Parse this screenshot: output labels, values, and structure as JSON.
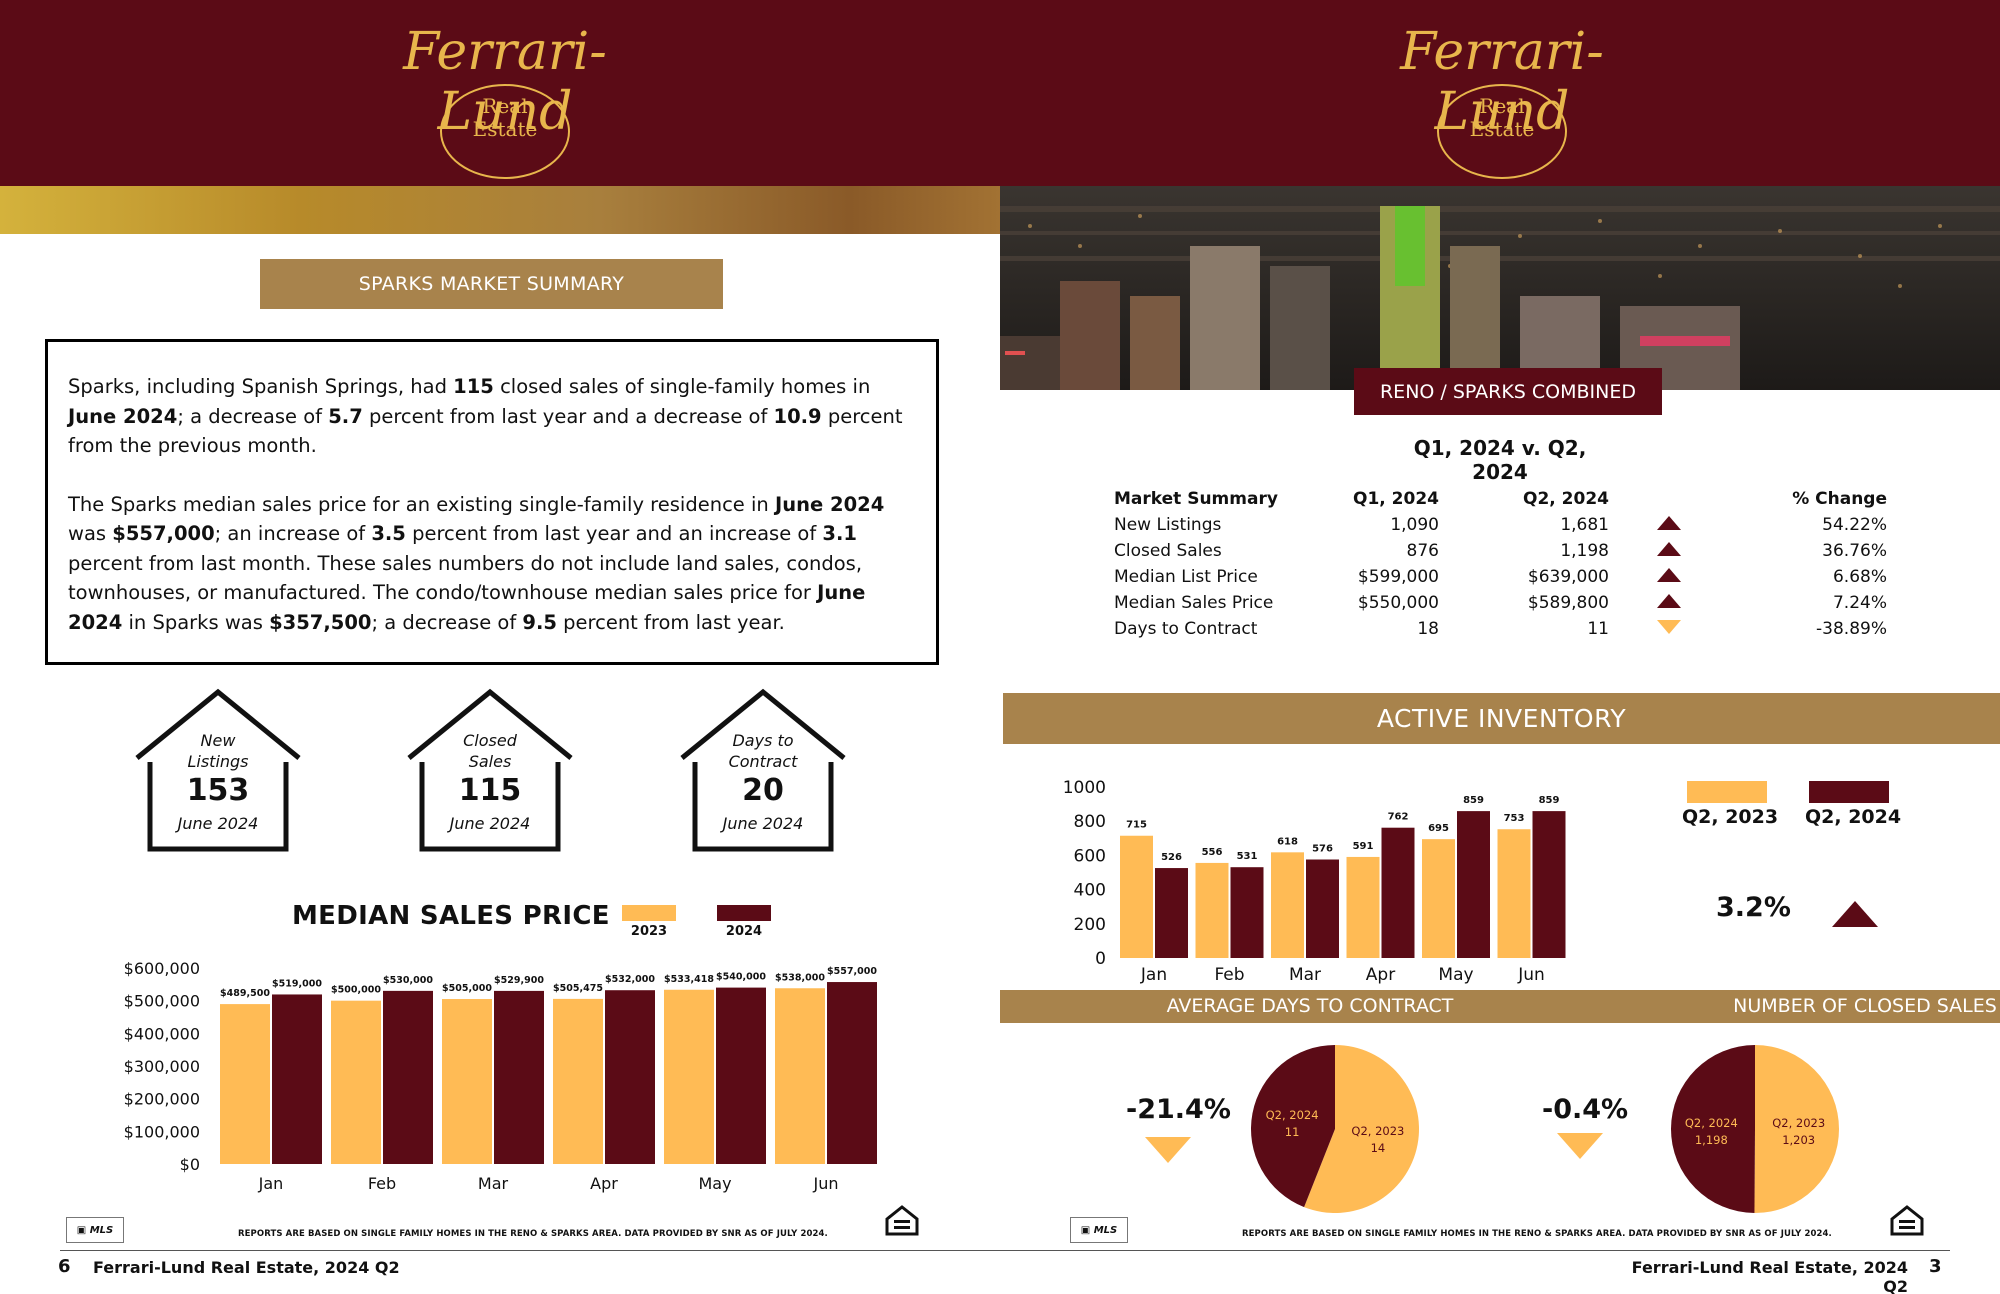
{
  "brand": {
    "name": "Ferrari-Lund",
    "sub1": "Real",
    "sub2": "Estate"
  },
  "left_page": {
    "summary_title": "SPARKS MARKET SUMMARY",
    "para1": [
      {
        "t": "Sparks, including Spanish Springs, had ",
        "b": false
      },
      {
        "t": "115",
        "b": true
      },
      {
        "t": " closed sales of single-family homes in ",
        "b": false
      },
      {
        "t": "June 2024",
        "b": true
      },
      {
        "t": "; a decrease of ",
        "b": false
      },
      {
        "t": "5.7",
        "b": true
      },
      {
        "t": " percent from last year and a decrease of ",
        "b": false
      },
      {
        "t": "10.9",
        "b": true
      },
      {
        "t": " percent from the previous month.",
        "b": false
      }
    ],
    "para2": [
      {
        "t": "The Sparks median sales price for an existing single-family residence in ",
        "b": false
      },
      {
        "t": "June 2024",
        "b": true
      },
      {
        "t": " was ",
        "b": false
      },
      {
        "t": "$557,000",
        "b": true
      },
      {
        "t": "; an increase of ",
        "b": false
      },
      {
        "t": "3.5",
        "b": true
      },
      {
        "t": " percent from last year and an increase of ",
        "b": false
      },
      {
        "t": "3.1",
        "b": true
      },
      {
        "t": " percent from last month. These sales numbers do not include land sales, condos, townhouses, or manufactured. The condo/townhouse median sales price for ",
        "b": false
      },
      {
        "t": "June 2024",
        "b": true
      },
      {
        "t": " in Sparks was ",
        "b": false
      },
      {
        "t": "$357,500",
        "b": true
      },
      {
        "t": "; a decrease of ",
        "b": false
      },
      {
        "t": "9.5",
        "b": true
      },
      {
        "t": " percent from last year.",
        "b": false
      }
    ],
    "stats": [
      {
        "label1": "New",
        "label2": "Listings",
        "value": "153",
        "date": "June 2024"
      },
      {
        "label1": "Closed",
        "label2": "Sales",
        "value": "115",
        "date": "June 2024"
      },
      {
        "label1": "Days to",
        "label2": "Contract",
        "value": "20",
        "date": "June 2024"
      }
    ],
    "median_title": "MEDIAN SALES PRICE",
    "legend": [
      "2023",
      "2024"
    ],
    "disclaimer": "REPORTS ARE BASED ON SINGLE FAMILY HOMES IN THE RENO & SPARKS AREA. DATA PROVIDED BY SNR AS OF JULY 2024.",
    "page_number": "6",
    "footer": "Ferrari-Lund Real Estate, 2024 Q2"
  },
  "right_page": {
    "combined_tab": "RENO / SPARKS COMBINED",
    "quarter_title": "Q1, 2024 v. Q2, 2024",
    "table": {
      "headers": [
        "Market Summary",
        "Q1, 2024",
        "Q2, 2024",
        "",
        "% Change"
      ],
      "rows": [
        {
          "label": "New Listings",
          "q1": "1,090",
          "q2": "1,681",
          "dir": "up",
          "pct": "54.22%"
        },
        {
          "label": "Closed Sales",
          "q1": "876",
          "q2": "1,198",
          "dir": "up",
          "pct": "36.76%"
        },
        {
          "label": "Median List Price",
          "q1": "$599,000",
          "q2": "$639,000",
          "dir": "up",
          "pct": "6.68%"
        },
        {
          "label": "Median Sales Price",
          "q1": "$550,000",
          "q2": "$589,800",
          "dir": "up",
          "pct": "7.24%"
        },
        {
          "label": "Days to Contract",
          "q1": "18",
          "q2": "11",
          "dir": "down",
          "pct": "-38.89%"
        }
      ]
    },
    "active_title": "ACTIVE INVENTORY",
    "inv_legend": [
      "Q2, 2023",
      "Q2, 2024"
    ],
    "inv_change": "3.2%",
    "days_title": "AVERAGE DAYS TO CONTRACT",
    "closed_title": "NUMBER OF CLOSED SALES",
    "days_change": "-21.4%",
    "closed_change": "-0.4%",
    "disclaimer": "REPORTS ARE BASED ON SINGLE FAMILY HOMES IN THE RENO & SPARKS AREA. DATA PROVIDED BY SNR AS OF JULY 2024.",
    "page_number": "3",
    "footer": "Ferrari-Lund Real Estate, 2024 Q2"
  },
  "colors": {
    "maroon": "#5b0b16",
    "gold": "#ffbb55",
    "tan": "#a8834c"
  },
  "chart_data": [
    {
      "type": "bar",
      "title": "MEDIAN SALES PRICE",
      "categories": [
        "Jan",
        "Feb",
        "Mar",
        "Apr",
        "May",
        "Jun"
      ],
      "series": [
        {
          "name": "2023",
          "values": [
            489500,
            500000,
            505000,
            505475,
            533418,
            538000
          ],
          "labels": [
            "$489,500",
            "$500,000",
            "$505,000",
            "$505,475",
            "$533,418",
            "$538,000"
          ]
        },
        {
          "name": "2024",
          "values": [
            519000,
            530000,
            529900,
            532000,
            540000,
            557000
          ],
          "labels": [
            "$519,000",
            "$530,000",
            "$529,900",
            "$532,000",
            "$540,000",
            "$557,000"
          ]
        }
      ],
      "yticks": [
        "$0",
        "$100,000",
        "$200,000",
        "$300,000",
        "$400,000",
        "$500,000",
        "$600,000"
      ],
      "ylim": [
        0,
        600000
      ]
    },
    {
      "type": "bar",
      "title": "ACTIVE INVENTORY",
      "categories": [
        "Jan",
        "Feb",
        "Mar",
        "Apr",
        "May",
        "Jun"
      ],
      "series": [
        {
          "name": "Q2, 2023",
          "values": [
            715,
            556,
            618,
            591,
            695,
            753
          ]
        },
        {
          "name": "Q2, 2024",
          "values": [
            526,
            531,
            576,
            762,
            859,
            859
          ]
        }
      ],
      "yticks": [
        "0",
        "200",
        "400",
        "600",
        "800",
        "1000"
      ],
      "ylim": [
        0,
        1000
      ]
    },
    {
      "type": "pie",
      "title": "AVERAGE DAYS TO CONTRACT",
      "slices": [
        {
          "name": "Q2, 2023",
          "value": 14
        },
        {
          "name": "Q2, 2024",
          "value": 11
        }
      ]
    },
    {
      "type": "pie",
      "title": "NUMBER OF CLOSED SALES",
      "slices": [
        {
          "name": "Q2, 2023",
          "value": 1203,
          "label": "1,203"
        },
        {
          "name": "Q2, 2024",
          "value": 1198,
          "label": "1,198"
        }
      ]
    }
  ]
}
